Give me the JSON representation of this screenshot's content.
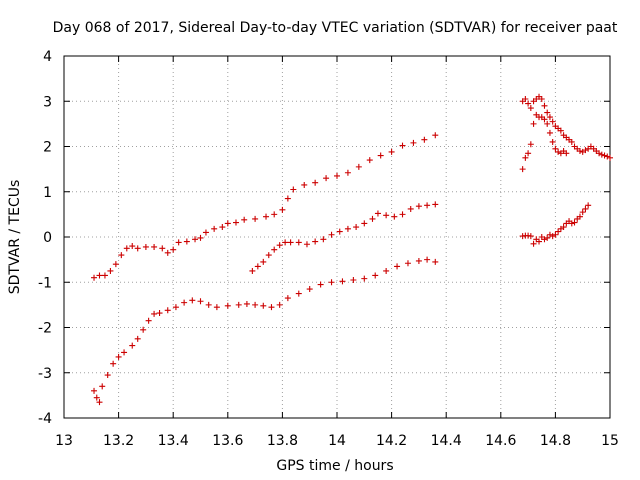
{
  "chart_data": {
    "type": "scatter",
    "title": "Day 068 of 2017, Sidereal Day-to-day VTEC variation (SDTVAR) for receiver paat",
    "xlabel": "GPS time / hours",
    "ylabel": "SDTVAR / TECUs",
    "xlim": [
      13,
      15
    ],
    "ylim": [
      -4,
      4
    ],
    "grid": true,
    "x_ticks": [
      13,
      13.2,
      13.4,
      13.6,
      13.8,
      14,
      14.2,
      14.4,
      14.6,
      14.8,
      15
    ],
    "x_tick_labels": [
      "13",
      "13.2",
      "13.4",
      "13.6",
      "13.8",
      "14",
      "14.2",
      "14.4",
      "14.6",
      "14.8",
      "15"
    ],
    "y_ticks": [
      -4,
      -3,
      -2,
      -1,
      0,
      1,
      2,
      3,
      4
    ],
    "y_tick_labels": [
      "-4",
      "-3",
      "-2",
      "-1",
      "0",
      "1",
      "2",
      "3",
      "4"
    ],
    "marker": "+",
    "color": "#cc0000",
    "series": [
      {
        "name": "track-upper-left",
        "x": [
          13.11,
          13.13,
          13.15,
          13.17,
          13.19,
          13.21,
          13.23,
          13.25,
          13.27,
          13.3,
          13.33,
          13.36,
          13.38,
          13.4,
          13.42,
          13.45,
          13.48,
          13.5,
          13.52,
          13.55,
          13.58,
          13.6,
          13.63,
          13.66,
          13.7,
          13.74,
          13.77,
          13.8,
          13.82,
          13.84,
          13.88,
          13.92,
          13.96,
          14.0,
          14.04,
          14.08,
          14.12,
          14.16,
          14.2,
          14.24,
          14.28,
          14.32,
          14.36
        ],
        "y": [
          -0.9,
          -0.85,
          -0.85,
          -0.75,
          -0.6,
          -0.4,
          -0.25,
          -0.2,
          -0.25,
          -0.22,
          -0.22,
          -0.25,
          -0.35,
          -0.28,
          -0.12,
          -0.1,
          -0.05,
          -0.02,
          0.1,
          0.18,
          0.22,
          0.3,
          0.32,
          0.38,
          0.4,
          0.45,
          0.5,
          0.6,
          0.85,
          1.05,
          1.15,
          1.2,
          1.3,
          1.35,
          1.42,
          1.55,
          1.7,
          1.8,
          1.88,
          2.02,
          2.08,
          2.15,
          2.25
        ]
      },
      {
        "name": "track-lower-left",
        "x": [
          13.11,
          13.12,
          13.13,
          13.14,
          13.16,
          13.18,
          13.2,
          13.22,
          13.25,
          13.27,
          13.29,
          13.31,
          13.33,
          13.35,
          13.38,
          13.41,
          13.44,
          13.47,
          13.5,
          13.53,
          13.56,
          13.6,
          13.64,
          13.67,
          13.7,
          13.73,
          13.76,
          13.79,
          13.82,
          13.86,
          13.9,
          13.94,
          13.98,
          14.02,
          14.06,
          14.1,
          14.14,
          14.18,
          14.22,
          14.26,
          14.3,
          14.33,
          14.36
        ],
        "y": [
          -3.4,
          -3.55,
          -3.65,
          -3.3,
          -3.05,
          -2.8,
          -2.65,
          -2.55,
          -2.4,
          -2.25,
          -2.05,
          -1.85,
          -1.7,
          -1.68,
          -1.62,
          -1.55,
          -1.45,
          -1.4,
          -1.42,
          -1.5,
          -1.55,
          -1.52,
          -1.5,
          -1.48,
          -1.5,
          -1.52,
          -1.55,
          -1.5,
          -1.35,
          -1.25,
          -1.15,
          -1.05,
          -1.0,
          -0.98,
          -0.95,
          -0.92,
          -0.85,
          -0.75,
          -0.65,
          -0.58,
          -0.53,
          -0.5,
          -0.55
        ]
      },
      {
        "name": "track-middle",
        "x": [
          13.69,
          13.71,
          13.73,
          13.75,
          13.77,
          13.79,
          13.81,
          13.83,
          13.86,
          13.89,
          13.92,
          13.95,
          13.98,
          14.01,
          14.04,
          14.07,
          14.1,
          14.13,
          14.15,
          14.18,
          14.21,
          14.24,
          14.27,
          14.3,
          14.33,
          14.36
        ],
        "y": [
          -0.75,
          -0.65,
          -0.55,
          -0.4,
          -0.28,
          -0.18,
          -0.12,
          -0.12,
          -0.12,
          -0.16,
          -0.1,
          -0.05,
          0.05,
          0.12,
          0.18,
          0.22,
          0.3,
          0.4,
          0.52,
          0.48,
          0.45,
          0.5,
          0.62,
          0.68,
          0.7,
          0.72
        ]
      },
      {
        "name": "track-right-upper",
        "x": [
          14.68,
          14.69,
          14.7,
          14.71,
          14.72,
          14.73,
          14.74,
          14.75,
          14.76,
          14.77,
          14.78,
          14.79,
          14.8,
          14.81,
          14.82,
          14.83,
          14.84,
          14.85,
          14.86,
          14.87,
          14.88,
          14.89,
          14.9,
          14.91,
          14.92,
          14.93,
          14.94,
          14.95,
          14.96,
          14.97,
          14.98,
          14.99,
          15.0
        ],
        "y": [
          3.0,
          3.05,
          2.95,
          2.85,
          3.0,
          3.05,
          3.1,
          3.05,
          2.9,
          2.75,
          2.65,
          2.55,
          2.45,
          2.4,
          2.35,
          2.25,
          2.2,
          2.15,
          2.1,
          2.0,
          1.95,
          1.9,
          1.88,
          1.92,
          1.95,
          2.0,
          1.95,
          1.9,
          1.85,
          1.82,
          1.8,
          1.78,
          1.75
        ]
      },
      {
        "name": "track-right-descending",
        "x": [
          14.68,
          14.69,
          14.7,
          14.71,
          14.72,
          14.73,
          14.74,
          14.75,
          14.76,
          14.77,
          14.78,
          14.79,
          14.8,
          14.81,
          14.82,
          14.83,
          14.84
        ],
        "y": [
          1.5,
          1.75,
          1.85,
          2.05,
          2.5,
          2.7,
          2.65,
          2.65,
          2.6,
          2.5,
          2.3,
          2.1,
          1.95,
          1.88,
          1.85,
          1.9,
          1.85
        ]
      },
      {
        "name": "track-right-lower",
        "x": [
          14.68,
          14.69,
          14.7,
          14.71,
          14.72,
          14.73,
          14.74,
          14.75,
          14.76,
          14.77,
          14.78,
          14.79,
          14.8,
          14.81,
          14.82,
          14.83,
          14.84,
          14.85,
          14.86,
          14.87,
          14.88,
          14.89,
          14.9,
          14.91,
          14.92
        ],
        "y": [
          0.02,
          0.03,
          0.03,
          0.02,
          -0.15,
          -0.05,
          -0.1,
          0.0,
          -0.05,
          -0.02,
          0.05,
          0.02,
          0.05,
          0.12,
          0.18,
          0.22,
          0.3,
          0.35,
          0.3,
          0.32,
          0.4,
          0.45,
          0.55,
          0.62,
          0.7
        ]
      }
    ]
  }
}
